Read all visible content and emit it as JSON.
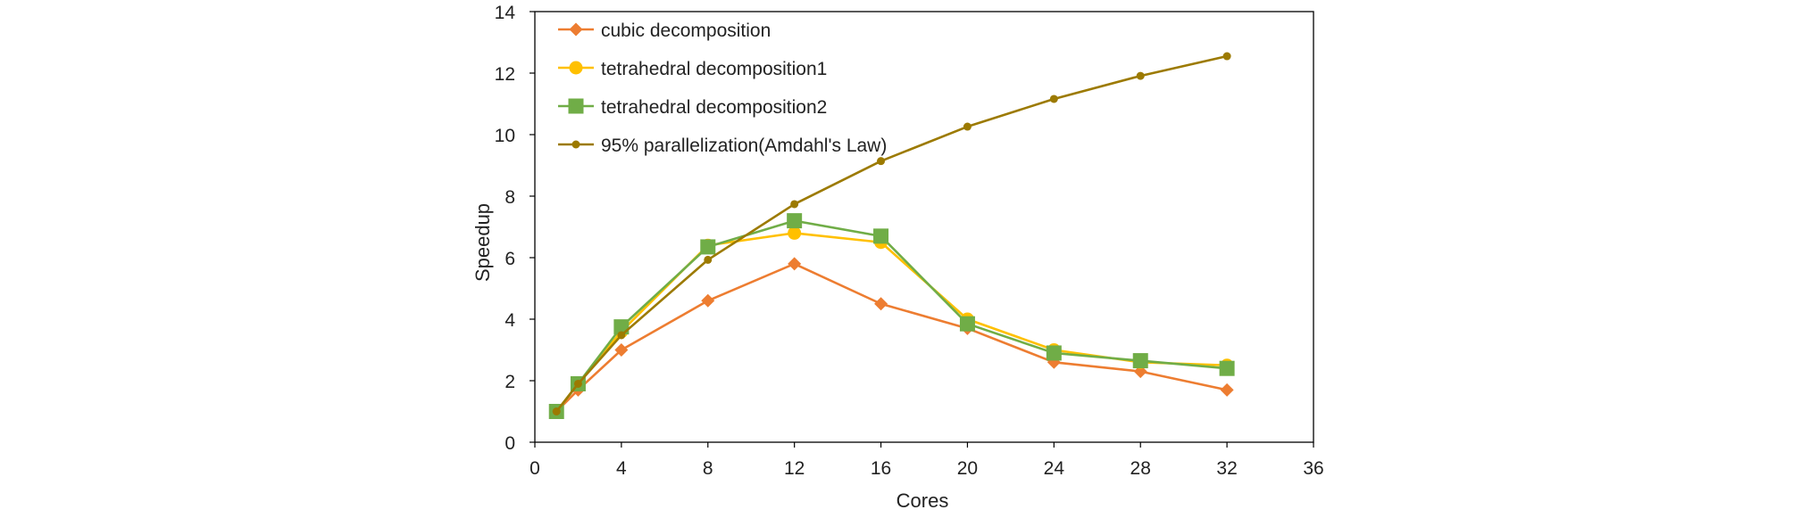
{
  "chart_data": {
    "type": "line",
    "title": "",
    "xlabel": "Cores",
    "ylabel": "Speedup",
    "xlim": [
      0,
      36
    ],
    "ylim": [
      0,
      14
    ],
    "x_ticks": [
      "0",
      "4",
      "8",
      "12",
      "16",
      "20",
      "24",
      "28",
      "32",
      "36"
    ],
    "y_ticks": [
      "0",
      "2",
      "4",
      "6",
      "8",
      "10",
      "12",
      "14"
    ],
    "grid": false,
    "legend_position": "top-left",
    "series": [
      {
        "name": "cubic decomposition",
        "color": "#ED7D31",
        "marker": "diamond",
        "x": [
          1,
          2,
          4,
          8,
          12,
          16,
          20,
          24,
          28,
          32
        ],
        "y": [
          1.0,
          1.7,
          3.0,
          4.6,
          5.8,
          4.5,
          3.7,
          2.6,
          2.3,
          1.7
        ]
      },
      {
        "name": "tetrahedral decomposition1",
        "color": "#FFC000",
        "marker": "circle",
        "x": [
          1,
          2,
          4,
          8,
          12,
          16,
          20,
          24,
          28,
          32
        ],
        "y": [
          1.0,
          1.9,
          3.6,
          6.4,
          6.8,
          6.5,
          4.0,
          3.0,
          2.6,
          2.5
        ]
      },
      {
        "name": "tetrahedral decomposition2",
        "color": "#70AD47",
        "marker": "square",
        "x": [
          1,
          2,
          4,
          8,
          12,
          16,
          20,
          24,
          28,
          32
        ],
        "y": [
          1.0,
          1.9,
          3.75,
          6.35,
          7.2,
          6.7,
          3.85,
          2.9,
          2.65,
          2.4
        ]
      },
      {
        "name": "95% parallelization(Amdahl's Law)",
        "color": "#9C7A00",
        "marker": "small-circle",
        "x": [
          1,
          2,
          4,
          8,
          12,
          16,
          20,
          24,
          28,
          32
        ],
        "y": [
          1.0,
          1.9,
          3.48,
          5.93,
          7.74,
          9.14,
          10.26,
          11.16,
          11.91,
          12.55
        ]
      }
    ]
  }
}
